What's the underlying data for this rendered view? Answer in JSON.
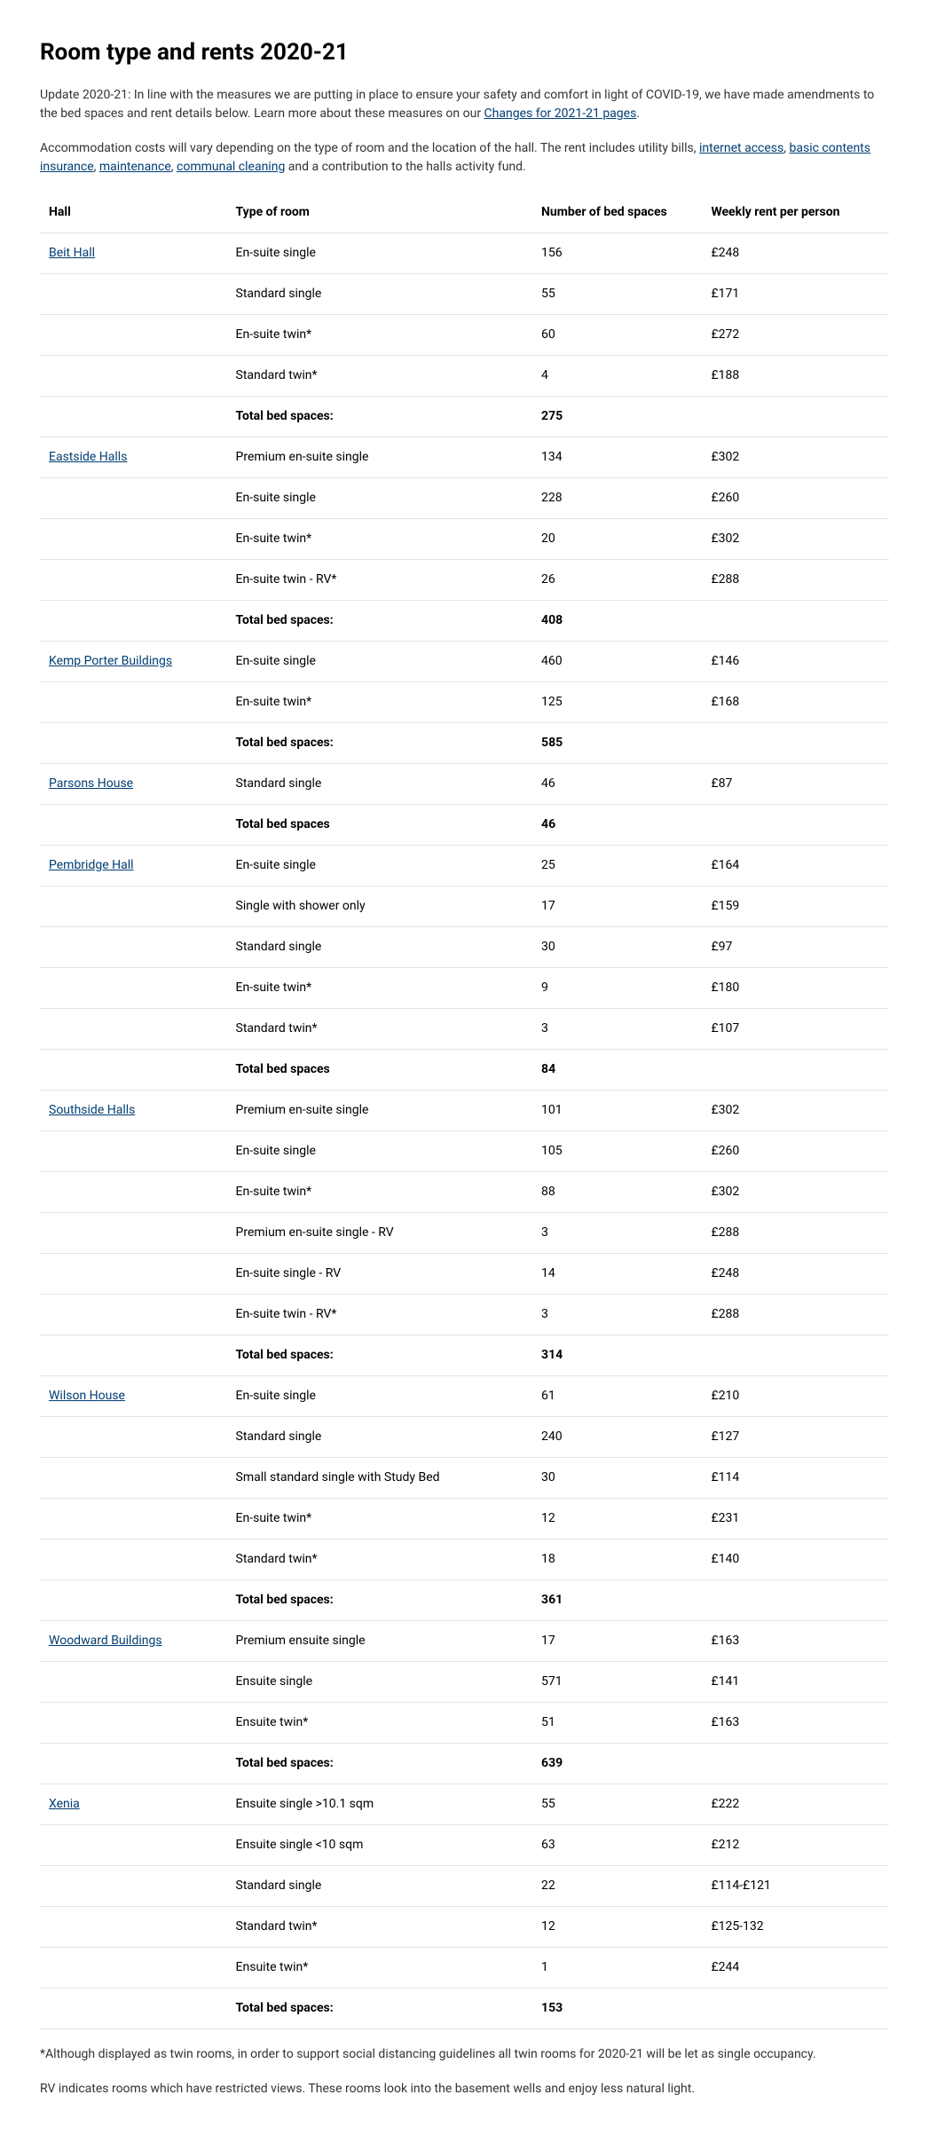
{
  "title": "Room type and rents 2020-21",
  "intro1_prefix": "Update 2020-21: In line with the measures we are putting in place to ensure your safety and comfort in light of COVID-19, we have made amendments to the bed spaces and rent details below. Learn more about these measures on our ",
  "intro1_link": "Changes for 2021-21 pages",
  "intro1_suffix": ".",
  "intro2_prefix": "Accommodation costs will vary depending on the type of room and the location of the hall. The rent includes utility bills, ",
  "intro2_links": [
    "internet access",
    "basic contents insurance",
    "maintenance",
    "communal cleaning"
  ],
  "intro2_seps": [
    ", ",
    ", ",
    ", "
  ],
  "intro2_suffix": " and a contribution to the halls activity fund.",
  "columns": [
    "Hall",
    "Type of room",
    "Number of bed spaces",
    "Weekly rent per person"
  ],
  "halls": [
    {
      "name": "Beit Hall",
      "rows": [
        {
          "type": "En-suite single",
          "spaces": "156",
          "rent": "£248"
        },
        {
          "type": "Standard single",
          "spaces": "55",
          "rent": "£171"
        },
        {
          "type": "En-suite twin*",
          "spaces": "60",
          "rent": "£272"
        },
        {
          "type": "Standard twin*",
          "spaces": "4",
          "rent": "£188"
        }
      ],
      "total_label": "Total bed spaces:",
      "total": "275"
    },
    {
      "name": "Eastside Halls",
      "rows": [
        {
          "type": "Premium en-suite single",
          "spaces": "134",
          "rent": "£302"
        },
        {
          "type": "En-suite single",
          "spaces": "228",
          "rent": "£260"
        },
        {
          "type": "En-suite twin*",
          "spaces": "20",
          "rent": "£302"
        },
        {
          "type": "En-suite twin - RV*",
          "spaces": "26",
          "rent": "£288"
        }
      ],
      "total_label": "Total bed spaces:",
      "total": "408"
    },
    {
      "name": "Kemp Porter Buildings",
      "rows": [
        {
          "type": "En-suite single",
          "spaces": "460",
          "rent": "£146"
        },
        {
          "type": "En-suite twin*",
          "spaces": "125",
          "rent": "£168"
        }
      ],
      "total_label": "Total bed spaces:",
      "total": "585"
    },
    {
      "name": "Parsons House",
      "rows": [
        {
          "type": "Standard single",
          "spaces": "46",
          "rent": "£87"
        }
      ],
      "total_label": "Total bed spaces",
      "total": "46"
    },
    {
      "name": "Pembridge Hall",
      "rows": [
        {
          "type": "En-suite single",
          "spaces": "25",
          "rent": "£164"
        },
        {
          "type": "Single with shower only",
          "spaces": "17",
          "rent": "£159"
        },
        {
          "type": "Standard single",
          "spaces": "30",
          "rent": "£97"
        },
        {
          "type": "En-suite twin*",
          "spaces": "9",
          "rent": "£180"
        },
        {
          "type": "Standard twin*",
          "spaces": "3",
          "rent": "£107"
        }
      ],
      "total_label": "Total bed spaces",
      "total": "84"
    },
    {
      "name": "Southside Halls",
      "rows": [
        {
          "type": "Premium en-suite single",
          "spaces": "101",
          "rent": "£302"
        },
        {
          "type": "En-suite single",
          "spaces": "105",
          "rent": "£260"
        },
        {
          "type": "En-suite twin*",
          "spaces": "88",
          "rent": "£302"
        },
        {
          "type": "Premium en-suite single - RV",
          "spaces": "3",
          "rent": "£288"
        },
        {
          "type": "En-suite single - RV",
          "spaces": "14",
          "rent": "£248"
        },
        {
          "type": "En-suite twin - RV*",
          "spaces": "3",
          "rent": "£288"
        }
      ],
      "total_label": "Total bed spaces:",
      "total": "314"
    },
    {
      "name": "Wilson House",
      "rows": [
        {
          "type": "En-suite single",
          "spaces": "61",
          "rent": "£210"
        },
        {
          "type": "Standard single",
          "spaces": "240",
          "rent": "£127"
        },
        {
          "type": "Small standard single with Study Bed",
          "spaces": "30",
          "rent": "£114"
        },
        {
          "type": "En-suite twin*",
          "spaces": "12",
          "rent": "£231"
        },
        {
          "type": "Standard twin*",
          "spaces": "18",
          "rent": "£140"
        }
      ],
      "total_label": "Total bed spaces:",
      "total": "361"
    },
    {
      "name": "Woodward Buildings",
      "rows": [
        {
          "type": "Premium ensuite single",
          "spaces": "17",
          "rent": "£163"
        },
        {
          "type": "Ensuite single",
          "spaces": "571",
          "rent": "£141"
        },
        {
          "type": "Ensuite twin*",
          "spaces": "51",
          "rent": "£163"
        }
      ],
      "total_label": "Total bed spaces:",
      "total": "639"
    },
    {
      "name": "Xenia",
      "rows": [
        {
          "type": "Ensuite single >10.1 sqm",
          "spaces": "55",
          "rent": "£222"
        },
        {
          "type": "Ensuite single <10 sqm",
          "spaces": "63",
          "rent": "£212"
        },
        {
          "type": "Standard single",
          "spaces": "22",
          "rent": "£114-£121"
        },
        {
          "type": "Standard twin*",
          "spaces": "12",
          "rent": "£125-132"
        },
        {
          "type": "Ensuite twin*",
          "spaces": "1",
          "rent": "£244"
        }
      ],
      "total_label": "Total bed spaces:",
      "total": "153"
    }
  ],
  "footnote1": "*Although displayed as twin rooms, in order to support social distancing guidelines all twin rooms for 2020-21 will be let as single occupancy.",
  "footnote2": "RV indicates rooms which have restricted views. These rooms look into the basement wells and enjoy less natural light."
}
